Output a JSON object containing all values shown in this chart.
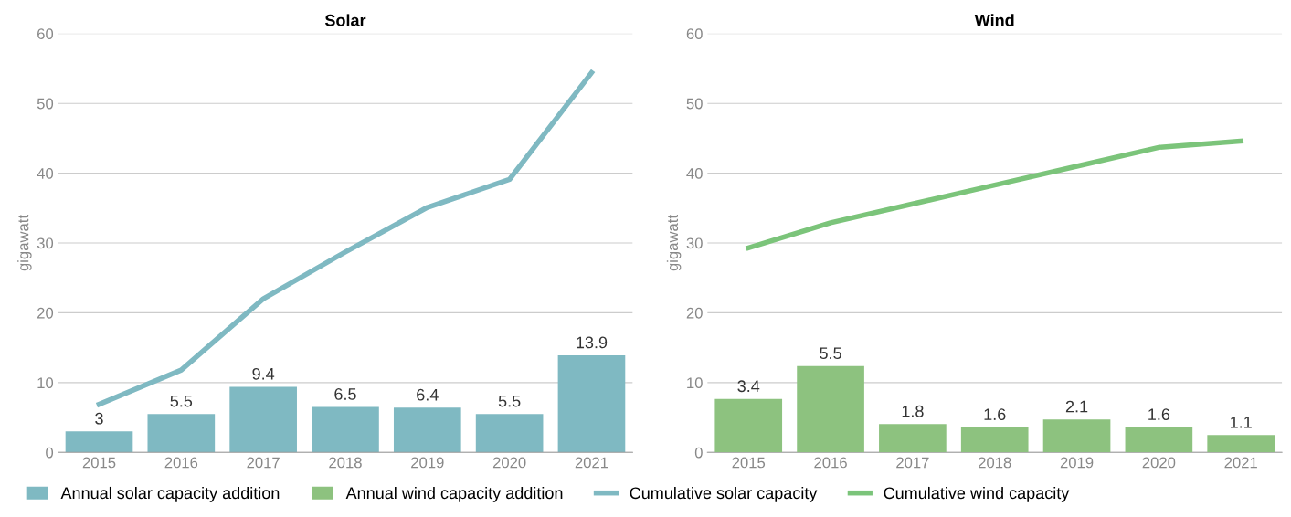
{
  "chart_data": [
    {
      "type": "bar",
      "title": "Solar",
      "ylabel": "gigawatt",
      "categories": [
        "2015",
        "2016",
        "2017",
        "2018",
        "2019",
        "2020",
        "2021"
      ],
      "ylim": [
        0,
        60
      ],
      "yticks": [
        0,
        10,
        20,
        30,
        40,
        50,
        60
      ],
      "grid": "y",
      "legend": "bottom",
      "series": [
        {
          "name": "Annual solar capacity addition",
          "color": "#7fb9c2",
          "values": [
            3,
            5.5,
            9.4,
            6.5,
            6.4,
            5.5,
            13.9
          ],
          "value_labels": [
            "3",
            "5.5",
            "9.4",
            "6.5",
            "6.4",
            "5.5",
            "13.9"
          ]
        },
        {
          "name": "Cumulative solar capacity",
          "type": "line",
          "color": "#7fb9c2",
          "values": [
            6.9,
            11.8,
            22,
            28.7,
            35.1,
            39.1,
            54.4
          ]
        }
      ]
    },
    {
      "type": "bar",
      "title": "Wind",
      "ylabel": "gigawatt",
      "categories": [
        "2015",
        "2016",
        "2017",
        "2018",
        "2019",
        "2020",
        "2021"
      ],
      "ylim": [
        0,
        60
      ],
      "yticks": [
        0,
        10,
        20,
        30,
        40,
        50,
        60
      ],
      "y2lim": [
        0,
        26.7
      ],
      "grid": "y",
      "legend": "bottom",
      "series": [
        {
          "name": "Annual wind capacity addition",
          "axis": "y2",
          "color": "#8dc27f",
          "values": [
            3.4,
            5.5,
            1.8,
            1.6,
            2.1,
            1.6,
            1.1
          ],
          "value_labels": [
            "3.4",
            "5.5",
            "1.8",
            "1.6",
            "2.1",
            "1.6",
            "1.1"
          ]
        },
        {
          "name": "Cumulative wind capacity",
          "type": "line",
          "color": "#7bc47a",
          "values": [
            29.3,
            32.9,
            35.6,
            38.3,
            41.0,
            43.7,
            44.6
          ]
        }
      ]
    }
  ]
}
